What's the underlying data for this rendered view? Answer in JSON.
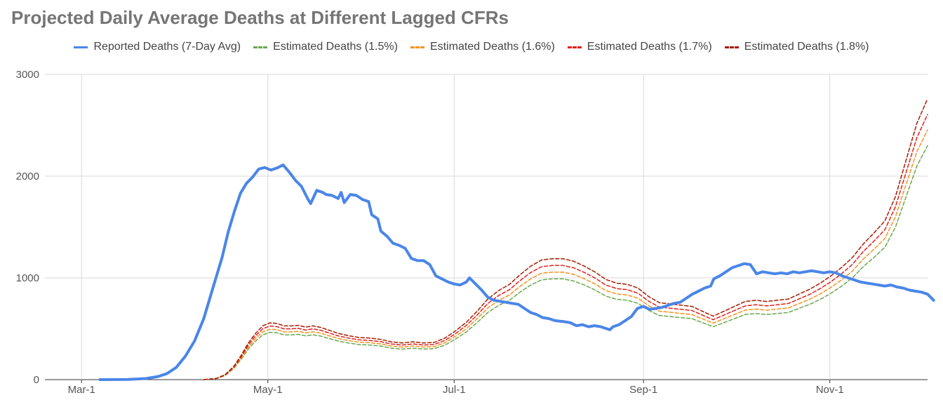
{
  "title": "Projected Daily Average Deaths at Different Lagged CFRs",
  "chart_data": {
    "type": "line",
    "title": "Projected Daily Average Deaths at Different Lagged CFRs",
    "xlabel": "",
    "ylabel": "",
    "ylim": [
      0,
      3000
    ],
    "y_ticks": [
      0,
      1000,
      2000,
      3000
    ],
    "x_ticks": [
      {
        "label": "Mar-1",
        "day": 0
      },
      {
        "label": "May-1",
        "day": 61
      },
      {
        "label": "Jul-1",
        "day": 122
      },
      {
        "label": "Sep-1",
        "day": 184
      },
      {
        "label": "Nov-1",
        "day": 245
      }
    ],
    "xlim": [
      -12,
      277
    ],
    "grid": true,
    "legend_position": "top",
    "series": [
      {
        "name": "Reported Deaths (7-Day Avg)",
        "color": "#4a86e8",
        "dash": false,
        "width": 4,
        "points": [
          [
            6,
            0
          ],
          [
            15,
            2
          ],
          [
            21,
            10
          ],
          [
            25,
            30
          ],
          [
            28,
            60
          ],
          [
            31,
            120
          ],
          [
            34,
            230
          ],
          [
            37,
            380
          ],
          [
            40,
            600
          ],
          [
            43,
            900
          ],
          [
            46,
            1200
          ],
          [
            48,
            1450
          ],
          [
            50,
            1650
          ],
          [
            52,
            1830
          ],
          [
            54,
            1930
          ],
          [
            56,
            1990
          ],
          [
            58,
            2070
          ],
          [
            60,
            2085
          ],
          [
            62,
            2060
          ],
          [
            64,
            2080
          ],
          [
            66,
            2110
          ],
          [
            68,
            2040
          ],
          [
            70,
            1960
          ],
          [
            72,
            1900
          ],
          [
            74,
            1780
          ],
          [
            75,
            1730
          ],
          [
            77,
            1860
          ],
          [
            79,
            1840
          ],
          [
            80,
            1820
          ],
          [
            82,
            1810
          ],
          [
            84,
            1780
          ],
          [
            85,
            1840
          ],
          [
            86,
            1740
          ],
          [
            88,
            1820
          ],
          [
            90,
            1810
          ],
          [
            92,
            1770
          ],
          [
            94,
            1750
          ],
          [
            95,
            1620
          ],
          [
            97,
            1580
          ],
          [
            98,
            1460
          ],
          [
            100,
            1410
          ],
          [
            102,
            1340
          ],
          [
            104,
            1320
          ],
          [
            106,
            1290
          ],
          [
            108,
            1190
          ],
          [
            110,
            1170
          ],
          [
            112,
            1170
          ],
          [
            114,
            1130
          ],
          [
            116,
            1020
          ],
          [
            118,
            990
          ],
          [
            120,
            960
          ],
          [
            122,
            940
          ],
          [
            124,
            930
          ],
          [
            126,
            960
          ],
          [
            127,
            1000
          ],
          [
            129,
            940
          ],
          [
            131,
            880
          ],
          [
            133,
            810
          ],
          [
            135,
            780
          ],
          [
            137,
            770
          ],
          [
            139,
            760
          ],
          [
            141,
            750
          ],
          [
            143,
            740
          ],
          [
            145,
            700
          ],
          [
            147,
            660
          ],
          [
            149,
            640
          ],
          [
            151,
            610
          ],
          [
            153,
            600
          ],
          [
            155,
            580
          ],
          [
            158,
            570
          ],
          [
            160,
            560
          ],
          [
            162,
            530
          ],
          [
            164,
            540
          ],
          [
            166,
            520
          ],
          [
            168,
            530
          ],
          [
            170,
            520
          ],
          [
            172,
            500
          ],
          [
            173,
            490
          ],
          [
            174,
            520
          ],
          [
            176,
            540
          ],
          [
            178,
            580
          ],
          [
            180,
            620
          ],
          [
            182,
            700
          ],
          [
            184,
            720
          ],
          [
            186,
            690
          ],
          [
            188,
            700
          ],
          [
            190,
            710
          ],
          [
            192,
            730
          ],
          [
            194,
            750
          ],
          [
            196,
            760
          ],
          [
            198,
            800
          ],
          [
            200,
            840
          ],
          [
            202,
            870
          ],
          [
            204,
            900
          ],
          [
            206,
            920
          ],
          [
            207,
            990
          ],
          [
            209,
            1020
          ],
          [
            211,
            1060
          ],
          [
            213,
            1100
          ],
          [
            215,
            1120
          ],
          [
            217,
            1140
          ],
          [
            219,
            1130
          ],
          [
            221,
            1040
          ],
          [
            223,
            1060
          ],
          [
            225,
            1050
          ],
          [
            227,
            1040
          ],
          [
            229,
            1050
          ],
          [
            231,
            1040
          ],
          [
            233,
            1060
          ],
          [
            235,
            1050
          ],
          [
            237,
            1060
          ],
          [
            239,
            1070
          ],
          [
            241,
            1060
          ],
          [
            243,
            1050
          ],
          [
            245,
            1060
          ],
          [
            247,
            1050
          ],
          [
            249,
            1020
          ],
          [
            251,
            1000
          ],
          [
            253,
            980
          ],
          [
            255,
            960
          ],
          [
            257,
            950
          ],
          [
            259,
            940
          ],
          [
            261,
            930
          ],
          [
            263,
            920
          ],
          [
            265,
            930
          ],
          [
            267,
            910
          ],
          [
            269,
            900
          ],
          [
            271,
            880
          ],
          [
            273,
            870
          ],
          [
            275,
            860
          ],
          [
            277,
            840
          ],
          [
            279,
            780
          ]
        ]
      },
      {
        "name": "Estimated Deaths (1.5%)",
        "color": "#6aa84f",
        "dash": true,
        "width": 1.5,
        "points": []
      },
      {
        "name": "Estimated Deaths (1.6%)",
        "color": "#f6921e",
        "dash": true,
        "width": 1.5,
        "points": []
      },
      {
        "name": "Estimated Deaths (1.7%)",
        "color": "#e0201b",
        "dash": true,
        "width": 1.5,
        "points": []
      },
      {
        "name": "Estimated Deaths (1.8%)",
        "color": "#a61c00",
        "dash": true,
        "width": 1.5,
        "points": []
      }
    ]
  }
}
